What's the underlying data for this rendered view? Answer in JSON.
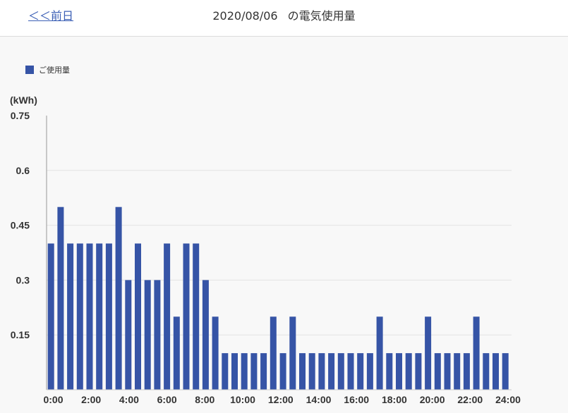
{
  "header": {
    "back_label": "＜＜前日",
    "date": "2020/08/06",
    "title_suffix": "の電気使用量"
  },
  "colors": {
    "bar": "#3654a6",
    "link": "#3b5fb5"
  },
  "chart_data": {
    "type": "bar",
    "ylabel": "(kWh)",
    "ylim": [
      0,
      0.75
    ],
    "y_ticks": [
      "0.15",
      "0.3",
      "0.45",
      "0.6",
      "0.75"
    ],
    "x_ticks": [
      "0:00",
      "2:00",
      "4:00",
      "6:00",
      "8:00",
      "10:00",
      "12:00",
      "14:00",
      "16:00",
      "18:00",
      "20:00",
      "22:00",
      "24:00"
    ],
    "legend": "ご使用量",
    "legend_position": "top-left",
    "grid": true,
    "values": [
      0.4,
      0.5,
      0.4,
      0.4,
      0.4,
      0.4,
      0.4,
      0.5,
      0.3,
      0.4,
      0.3,
      0.3,
      0.4,
      0.2,
      0.4,
      0.4,
      0.3,
      0.2,
      0.1,
      0.1,
      0.1,
      0.1,
      0.1,
      0.2,
      0.1,
      0.2,
      0.1,
      0.1,
      0.1,
      0.1,
      0.1,
      0.1,
      0.1,
      0.1,
      0.2,
      0.1,
      0.1,
      0.1,
      0.1,
      0.2,
      0.1,
      0.1,
      0.1,
      0.1,
      0.2,
      0.1,
      0.1,
      0.1
    ]
  }
}
